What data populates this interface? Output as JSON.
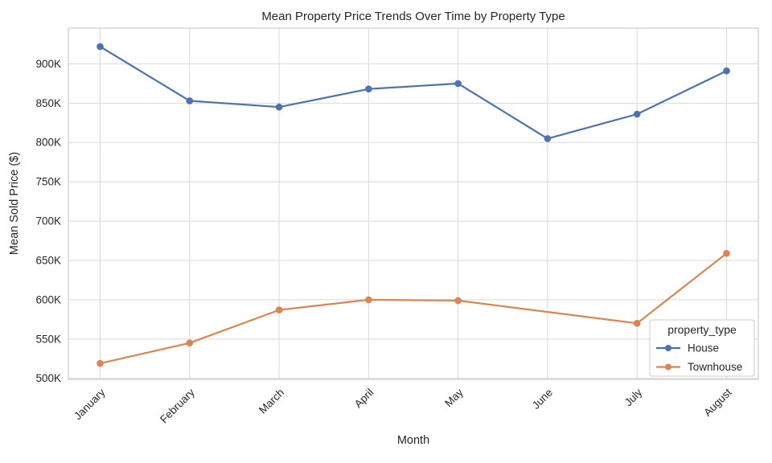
{
  "chart_data": {
    "type": "line",
    "title": "Mean Property Price Trends Over Time by Property Type",
    "xlabel": "Month",
    "ylabel": "Mean Sold Price ($)",
    "categories": [
      "January",
      "February",
      "March",
      "April",
      "May",
      "June",
      "July",
      "August"
    ],
    "ytick_values": [
      500,
      550,
      600,
      650,
      700,
      750,
      800,
      850,
      900
    ],
    "ytick_labels": [
      "500K",
      "550K",
      "600K",
      "650K",
      "700K",
      "750K",
      "800K",
      "850K",
      "900K"
    ],
    "ylim": [
      498.7,
      945.4
    ],
    "y_unit": "K",
    "grid": true,
    "grid_color": "#d9d9d9",
    "axis_frame_color": "#cbcbcb",
    "text_color": "#262626",
    "legend": {
      "title": "property_type",
      "position": "lower-right"
    },
    "series": [
      {
        "name": "House",
        "color": "#4C72B0",
        "values": [
          922,
          853,
          845,
          868,
          875,
          805,
          836,
          891
        ]
      },
      {
        "name": "Townhouse",
        "color": "#DD8452",
        "values": [
          519,
          545,
          587,
          600,
          599,
          null,
          570,
          659
        ]
      }
    ]
  }
}
